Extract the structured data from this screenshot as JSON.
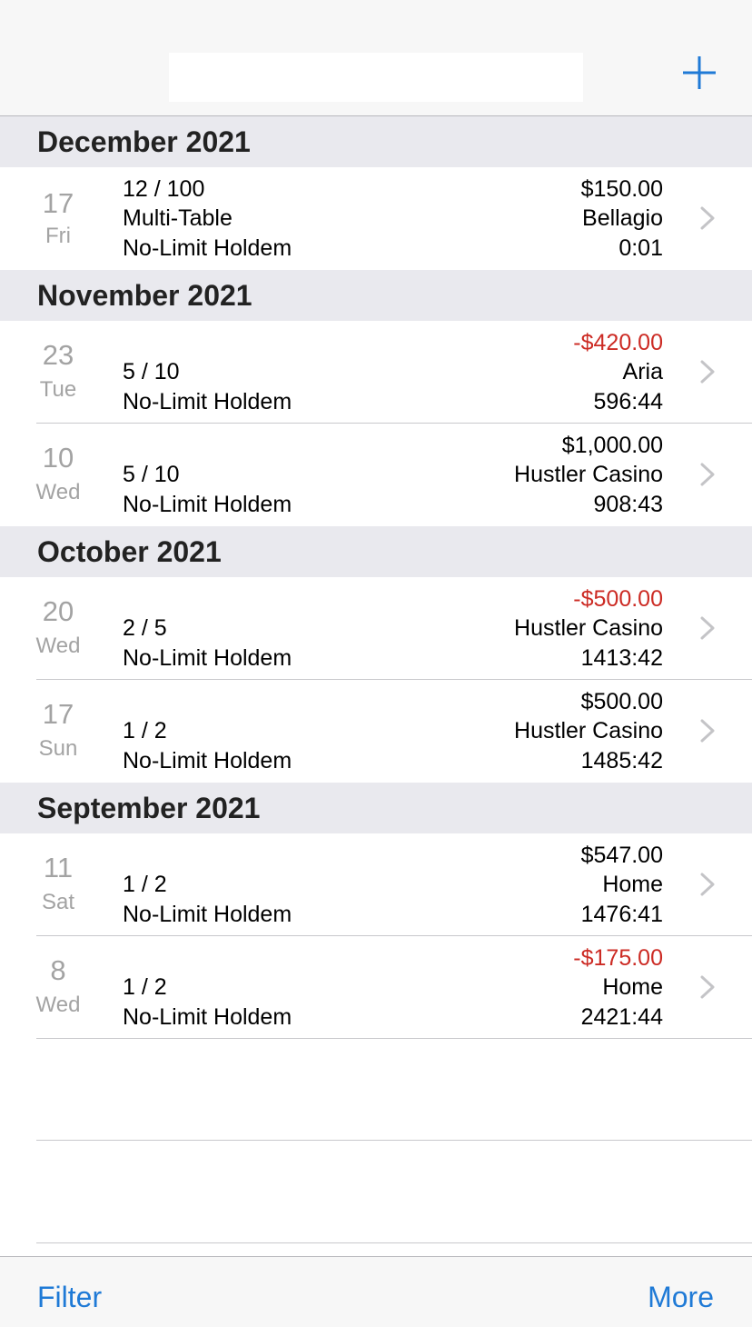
{
  "nav": {
    "title": "",
    "add_icon": "plus-icon",
    "accent": "#1f7ad6"
  },
  "sections": [
    {
      "title": "December 2021",
      "rows": [
        {
          "day": "17",
          "weekday": "Fri",
          "left": [
            "12 / 100",
            "Multi-Table",
            "No-Limit Holdem"
          ],
          "amount": "$150.00",
          "amount_negative": false,
          "location": "Bellagio",
          "duration": "0:01"
        }
      ]
    },
    {
      "title": "November 2021",
      "rows": [
        {
          "day": "23",
          "weekday": "Tue",
          "left": [
            "5 / 10",
            "No-Limit Holdem"
          ],
          "amount": "-$420.00",
          "amount_negative": true,
          "location": "Aria",
          "duration": "596:44"
        },
        {
          "day": "10",
          "weekday": "Wed",
          "left": [
            "5 / 10",
            "No-Limit Holdem"
          ],
          "amount": "$1,000.00",
          "amount_negative": false,
          "location": "Hustler Casino",
          "duration": "908:43"
        }
      ]
    },
    {
      "title": "October 2021",
      "rows": [
        {
          "day": "20",
          "weekday": "Wed",
          "left": [
            "2 / 5",
            "No-Limit Holdem"
          ],
          "amount": "-$500.00",
          "amount_negative": true,
          "location": "Hustler Casino",
          "duration": "1413:42"
        },
        {
          "day": "17",
          "weekday": "Sun",
          "left": [
            "1 / 2",
            "No-Limit Holdem"
          ],
          "amount": "$500.00",
          "amount_negative": false,
          "location": "Hustler Casino",
          "duration": "1485:42"
        }
      ]
    },
    {
      "title": "September 2021",
      "rows": [
        {
          "day": "11",
          "weekday": "Sat",
          "left": [
            "1 / 2",
            "No-Limit Holdem"
          ],
          "amount": "$547.00",
          "amount_negative": false,
          "location": "Home",
          "duration": "1476:41"
        },
        {
          "day": "8",
          "weekday": "Wed",
          "left": [
            "1 / 2",
            "No-Limit Holdem"
          ],
          "amount": "-$175.00",
          "amount_negative": true,
          "location": "Home",
          "duration": "2421:44"
        }
      ]
    }
  ],
  "toolbar": {
    "filter_label": "Filter",
    "more_label": "More"
  },
  "colors": {
    "negative": "#cc2b24",
    "section_bg": "#e9e9ee",
    "secondary_text": "#a3a3a3"
  }
}
